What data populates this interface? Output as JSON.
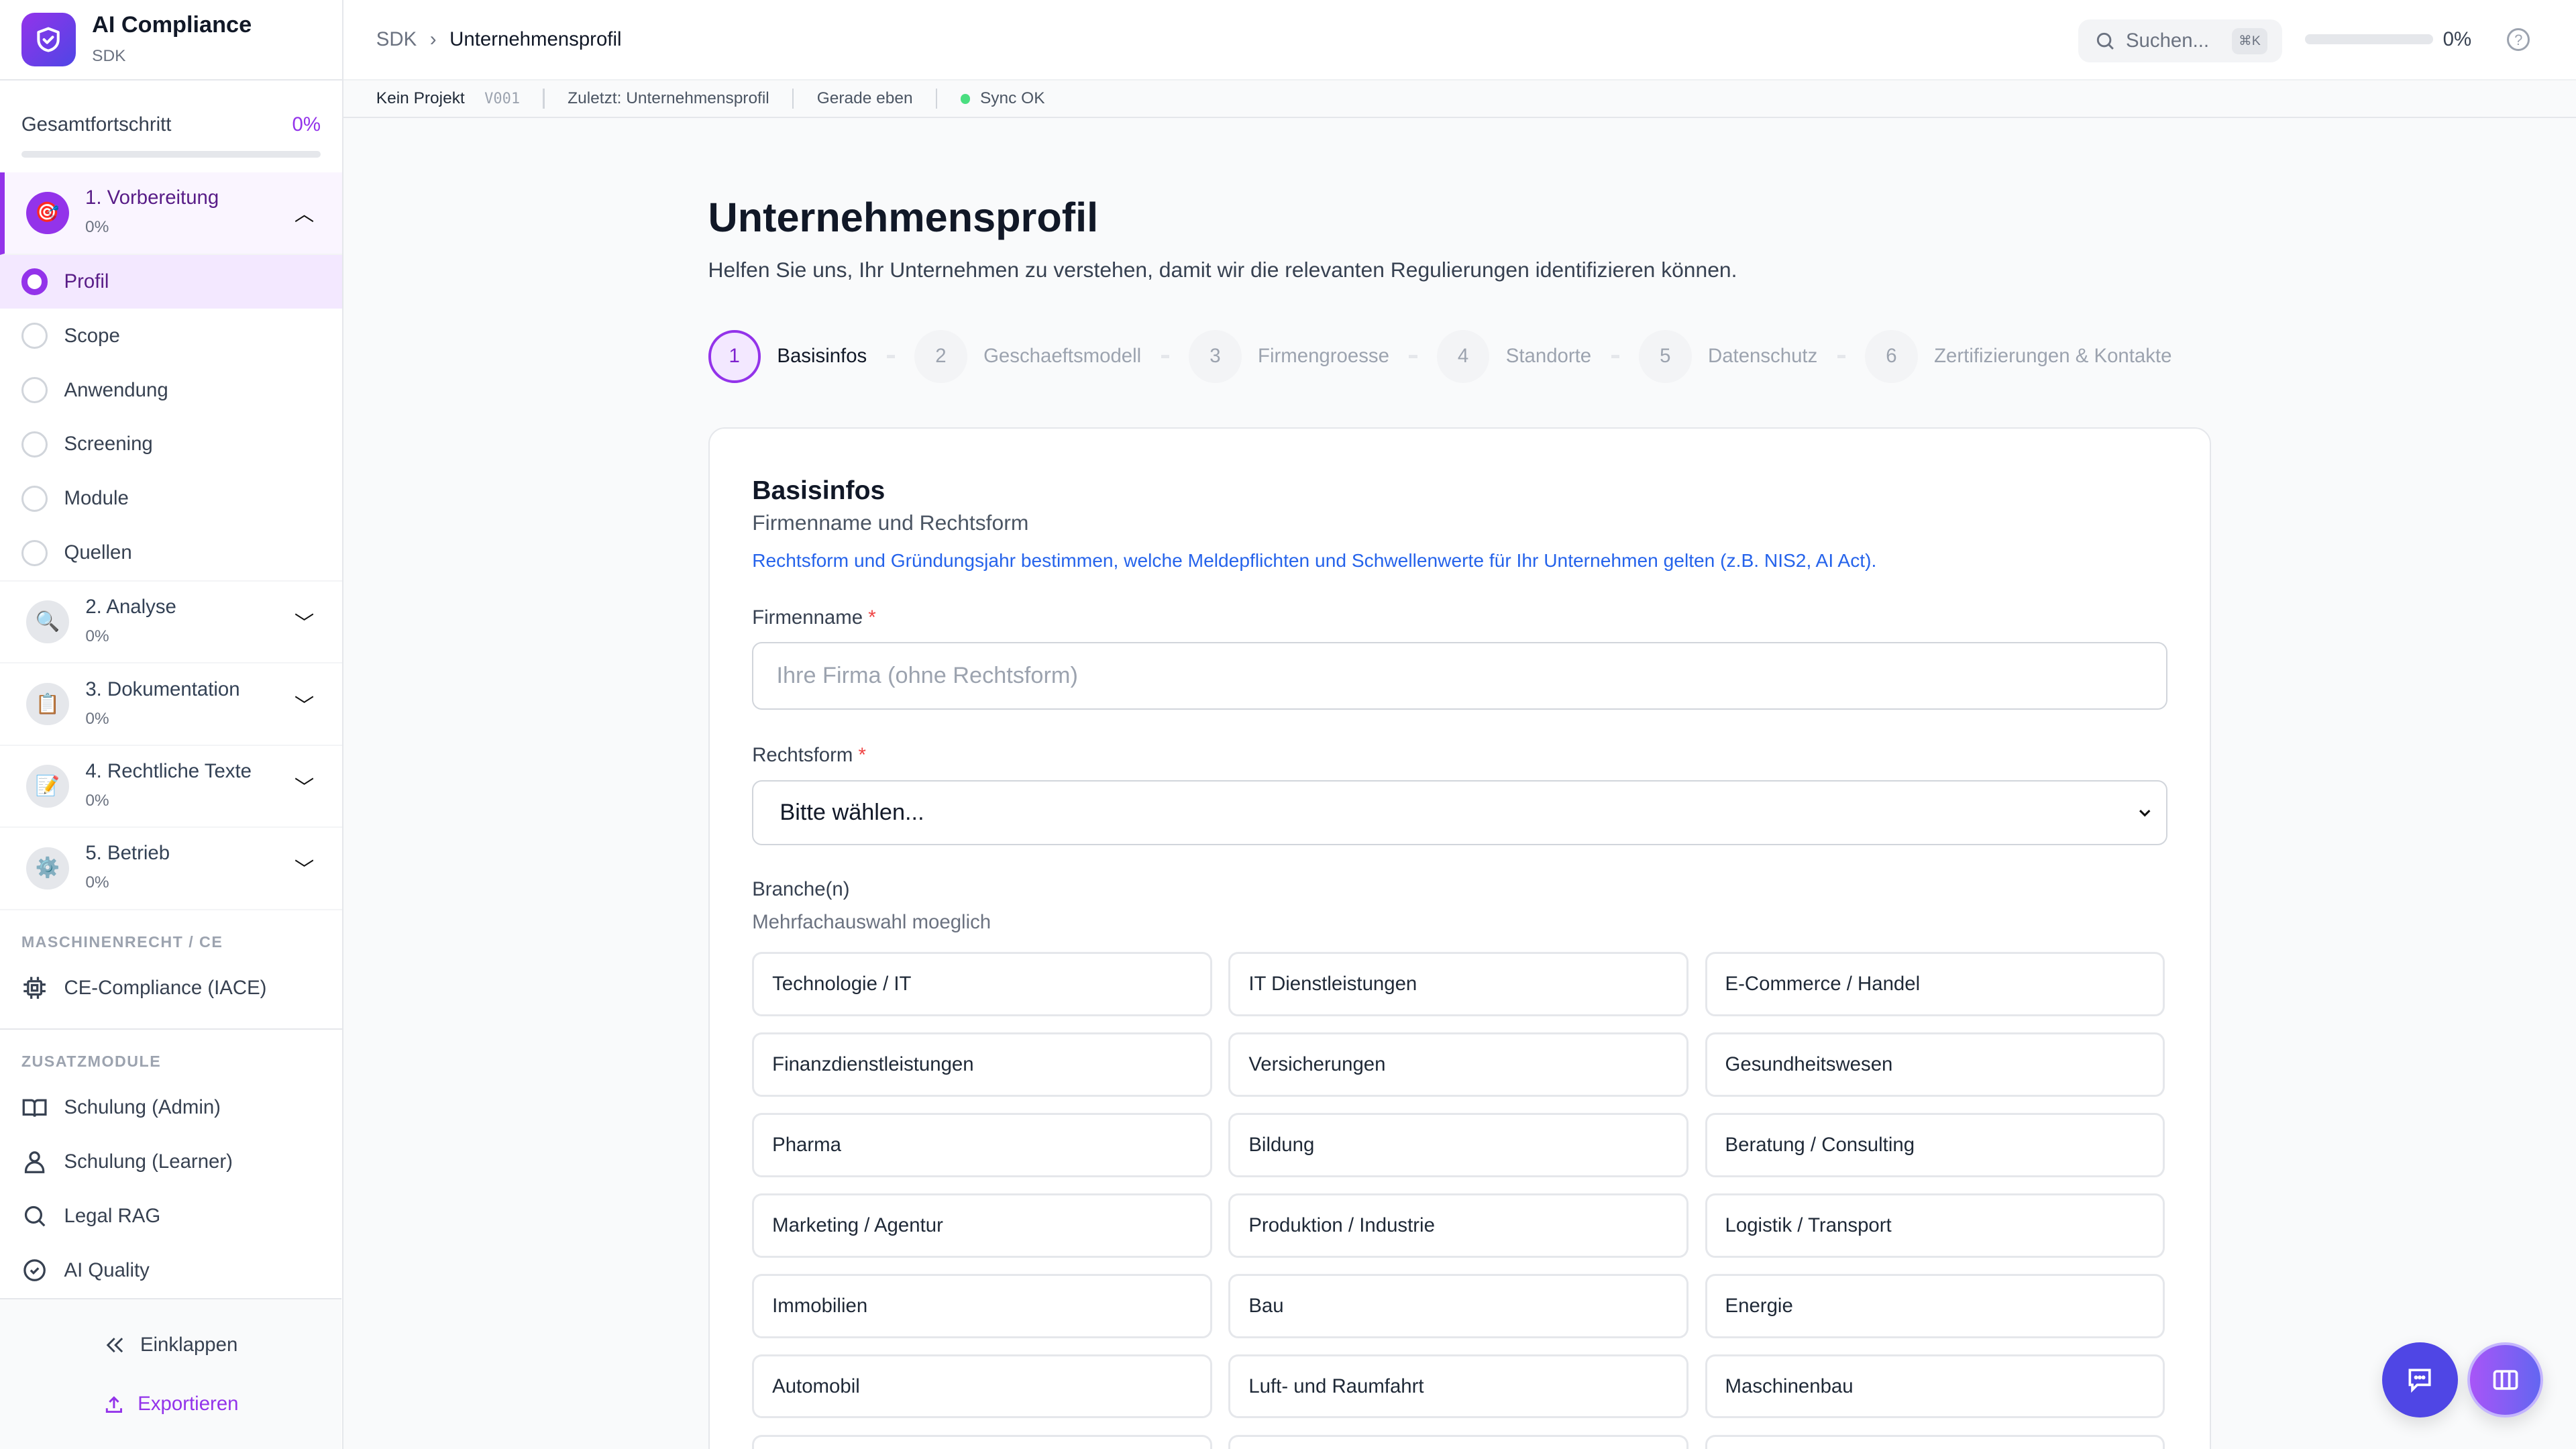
{
  "app": {
    "name": "AI Compliance",
    "sub": "SDK",
    "logo_icon": "shield-check-icon"
  },
  "progress": {
    "label": "Gesamtfortschritt",
    "value": "0%",
    "fraction": 0
  },
  "sections": [
    {
      "title": "1. Vorbereitung",
      "pct": "0%",
      "icon": "🎯",
      "expanded": true
    },
    {
      "title": "2. Analyse",
      "pct": "0%",
      "icon": "🔍"
    },
    {
      "title": "3. Dokumentation",
      "pct": "0%",
      "icon": "📋"
    },
    {
      "title": "4. Rechtliche Texte",
      "pct": "0%",
      "icon": "📝"
    },
    {
      "title": "5. Betrieb",
      "pct": "0%",
      "icon": "⚙️"
    }
  ],
  "subitems": [
    "Profil",
    "Scope",
    "Anwendung",
    "Screening",
    "Module",
    "Quellen"
  ],
  "machine": {
    "heading": "MASCHINENRECHT / CE",
    "item": "CE-Compliance (IACE)"
  },
  "extra": {
    "heading": "ZUSATZMODULE",
    "items": [
      "Schulung (Admin)",
      "Schulung (Learner)",
      "Legal RAG",
      "AI Quality"
    ]
  },
  "footer": {
    "collapse": "Einklappen",
    "export": "Exportieren"
  },
  "header": {
    "crumb_root": "SDK",
    "crumb_current": "Unternehmensprofil",
    "search": "Suchen...",
    "shortcut": "⌘K",
    "progress": "0%",
    "progress_fraction": 0
  },
  "status": {
    "project": "Kein Projekt",
    "version": "V001",
    "last": "Zuletzt: Unternehmensprofil",
    "time": "Gerade eben",
    "sync": "Sync OK"
  },
  "page": {
    "title": "Unternehmensprofil",
    "lead": "Helfen Sie uns, Ihr Unternehmen zu verstehen, damit wir die relevanten Regulierungen identifizieren können."
  },
  "steps": [
    {
      "n": "1",
      "label": "Basisinfos"
    },
    {
      "n": "2",
      "label": "Geschaeftsmodell"
    },
    {
      "n": "3",
      "label": "Firmengroesse"
    },
    {
      "n": "4",
      "label": "Standorte"
    },
    {
      "n": "5",
      "label": "Datenschutz"
    },
    {
      "n": "6",
      "label": "Zertifizierungen & Kontakte"
    }
  ],
  "card": {
    "title": "Basisinfos",
    "subtitle": "Firmenname und Rechtsform",
    "info": "Rechtsform und Gründungsjahr bestimmen, welche Meldepflichten und Schwellenwerte für Ihr Unternehmen gelten (z.B. NIS2, AI Act).",
    "name_label": "Firmenname",
    "name_placeholder": "Ihre Firma (ohne Rechtsform)",
    "name_value": "",
    "form_label": "Rechtsform",
    "form_value": "Bitte wählen...",
    "branch_label": "Branche(n)",
    "branch_hint": "Mehrfachauswahl moeglich",
    "required": "*",
    "branches": [
      "Technologie / IT",
      "IT Dienstleistungen",
      "E-Commerce / Handel",
      "Finanzdienstleistungen",
      "Versicherungen",
      "Gesundheitswesen",
      "Pharma",
      "Bildung",
      "Beratung / Consulting",
      "Marketing / Agentur",
      "Produktion / Industrie",
      "Logistik / Transport",
      "Immobilien",
      "Bau",
      "Energie",
      "Automobil",
      "Luft- und Raumfahrt",
      "Maschinenbau"
    ]
  },
  "colors": {
    "accent": "#9333ea",
    "link": "#2563eb",
    "sync": "#4ade80",
    "fab": "#4f46e5"
  }
}
